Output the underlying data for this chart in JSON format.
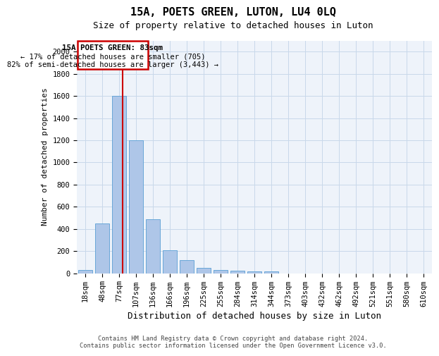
{
  "title": "15A, POETS GREEN, LUTON, LU4 0LQ",
  "subtitle": "Size of property relative to detached houses in Luton",
  "xlabel": "Distribution of detached houses by size in Luton",
  "ylabel": "Number of detached properties",
  "footer_line1": "Contains HM Land Registry data © Crown copyright and database right 2024.",
  "footer_line2": "Contains public sector information licensed under the Open Government Licence v3.0.",
  "bar_color": "#aec6e8",
  "bar_edge_color": "#5a9fd4",
  "grid_color": "#c8d8ea",
  "background_color": "#eef3fa",
  "categories": [
    "18sqm",
    "48sqm",
    "77sqm",
    "107sqm",
    "136sqm",
    "166sqm",
    "196sqm",
    "225sqm",
    "255sqm",
    "284sqm",
    "314sqm",
    "344sqm",
    "373sqm",
    "403sqm",
    "432sqm",
    "462sqm",
    "492sqm",
    "521sqm",
    "551sqm",
    "580sqm",
    "610sqm"
  ],
  "values": [
    30,
    450,
    1600,
    1200,
    490,
    210,
    120,
    45,
    30,
    20,
    15,
    15,
    0,
    0,
    0,
    0,
    0,
    0,
    0,
    0,
    0
  ],
  "ylim": [
    0,
    2100
  ],
  "yticks": [
    0,
    200,
    400,
    600,
    800,
    1000,
    1200,
    1400,
    1600,
    1800,
    2000
  ],
  "property_label": "15A POETS GREEN: 83sqm",
  "annotation_line1": "← 17% of detached houses are smaller (705)",
  "annotation_line2": "82% of semi-detached houses are larger (3,443) →",
  "vline_x": 2.2,
  "annotation_color": "#cc0000",
  "title_fontsize": 11,
  "subtitle_fontsize": 9,
  "tick_fontsize": 7.5,
  "ylabel_fontsize": 8,
  "xlabel_fontsize": 9
}
